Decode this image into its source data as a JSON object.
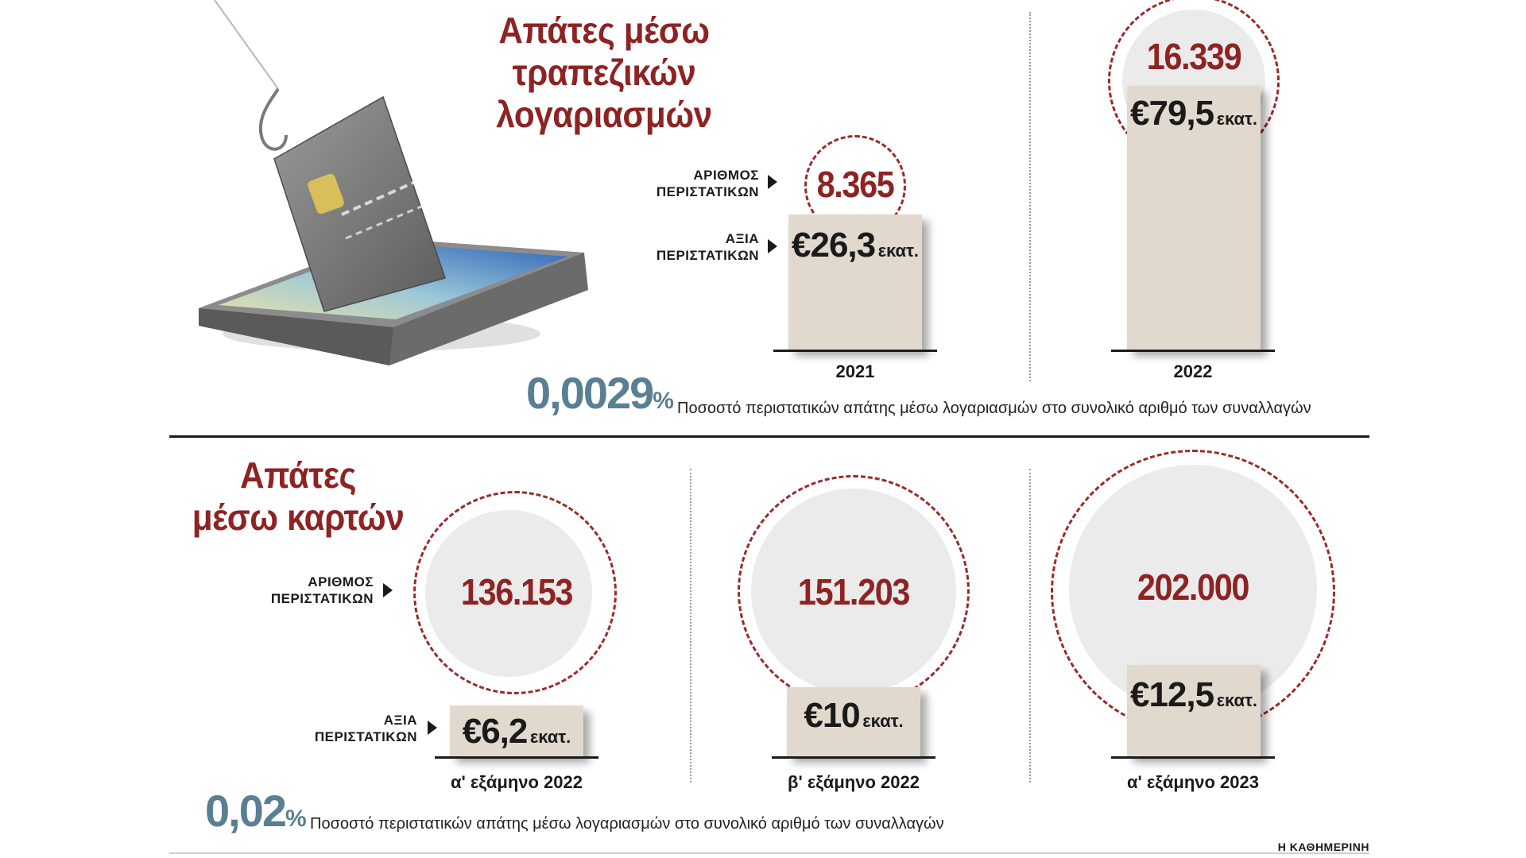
{
  "top": {
    "title_line1": "Απάτες μέσω",
    "title_line2": "τραπεζικών λογαριασμών",
    "label_count_l1": "ΑΡΙΘΜΟΣ",
    "label_count_l2": "ΠΕΡΙΣΤΑΤΙΚΩΝ",
    "label_value_l1": "ΑΞΙΑ",
    "label_value_l2": "ΠΕΡΙΣΤΑΤΙΚΩΝ",
    "percentage": "0,0029",
    "percent_symbol": "%",
    "note": "Ποσοστό περιστατικών απάτης μέσω λογαριασμών στο συνολικό αριθμό των συναλλαγών"
  },
  "bottom": {
    "title_line1": "Απάτες",
    "title_line2": "μέσω καρτών",
    "label_count_l1": "ΑΡΙΘΜΟΣ",
    "label_count_l2": "ΠΕΡΙΣΤΑΤΙΚΩΝ",
    "label_value_l1": "ΑΞΙΑ",
    "label_value_l2": "ΠΕΡΙΣΤΑΤΙΚΩΝ",
    "percentage": "0,02",
    "percent_symbol": "%",
    "note": "Ποσοστό περιστατικών απάτης μέσω λογαριασμών στο συνολικό αριθμό των συναλλαγών"
  },
  "credit": "Η ΚΑΘΗΜΕΡΙΝΗ",
  "unit_label": "εκατ.",
  "colors": {
    "accent": "#8e2323",
    "bar": "#e2d9ce",
    "percentage": "#5a7f93",
    "circle": "#ebebeb"
  },
  "chart_data": [
    {
      "type": "bar",
      "title": "Απάτες μέσω τραπεζικών λογαριασμών",
      "categories": [
        "2021",
        "2022"
      ],
      "series": [
        {
          "name": "ΑΡΙΘΜΟΣ ΠΕΡΙΣΤΑΤΙΚΩΝ",
          "values": [
            8365,
            16339
          ],
          "labels": [
            "8.365",
            "16.339"
          ]
        },
        {
          "name": "ΑΞΙΑ ΠΕΡΙΣΤΑΤΙΚΩΝ",
          "values": [
            26.3,
            79.5
          ],
          "labels": [
            "€26,3",
            "€79,5"
          ],
          "unit": "εκατ."
        }
      ]
    },
    {
      "type": "bar",
      "title": "Απάτες μέσω καρτών",
      "categories": [
        "α' εξάμηνο 2022",
        "β' εξάμηνο 2022",
        "α' εξάμηνο 2023"
      ],
      "series": [
        {
          "name": "ΑΡΙΘΜΟΣ ΠΕΡΙΣΤΑΤΙΚΩΝ",
          "values": [
            136153,
            151203,
            202000
          ],
          "labels": [
            "136.153",
            "151.203",
            "202.000"
          ]
        },
        {
          "name": "ΑΞΙΑ ΠΕΡΙΣΤΑΤΙΚΩΝ",
          "values": [
            6.2,
            10,
            12.5
          ],
          "labels": [
            "€6,2",
            "€10",
            "€12,5"
          ],
          "unit": "εκατ."
        }
      ]
    }
  ]
}
